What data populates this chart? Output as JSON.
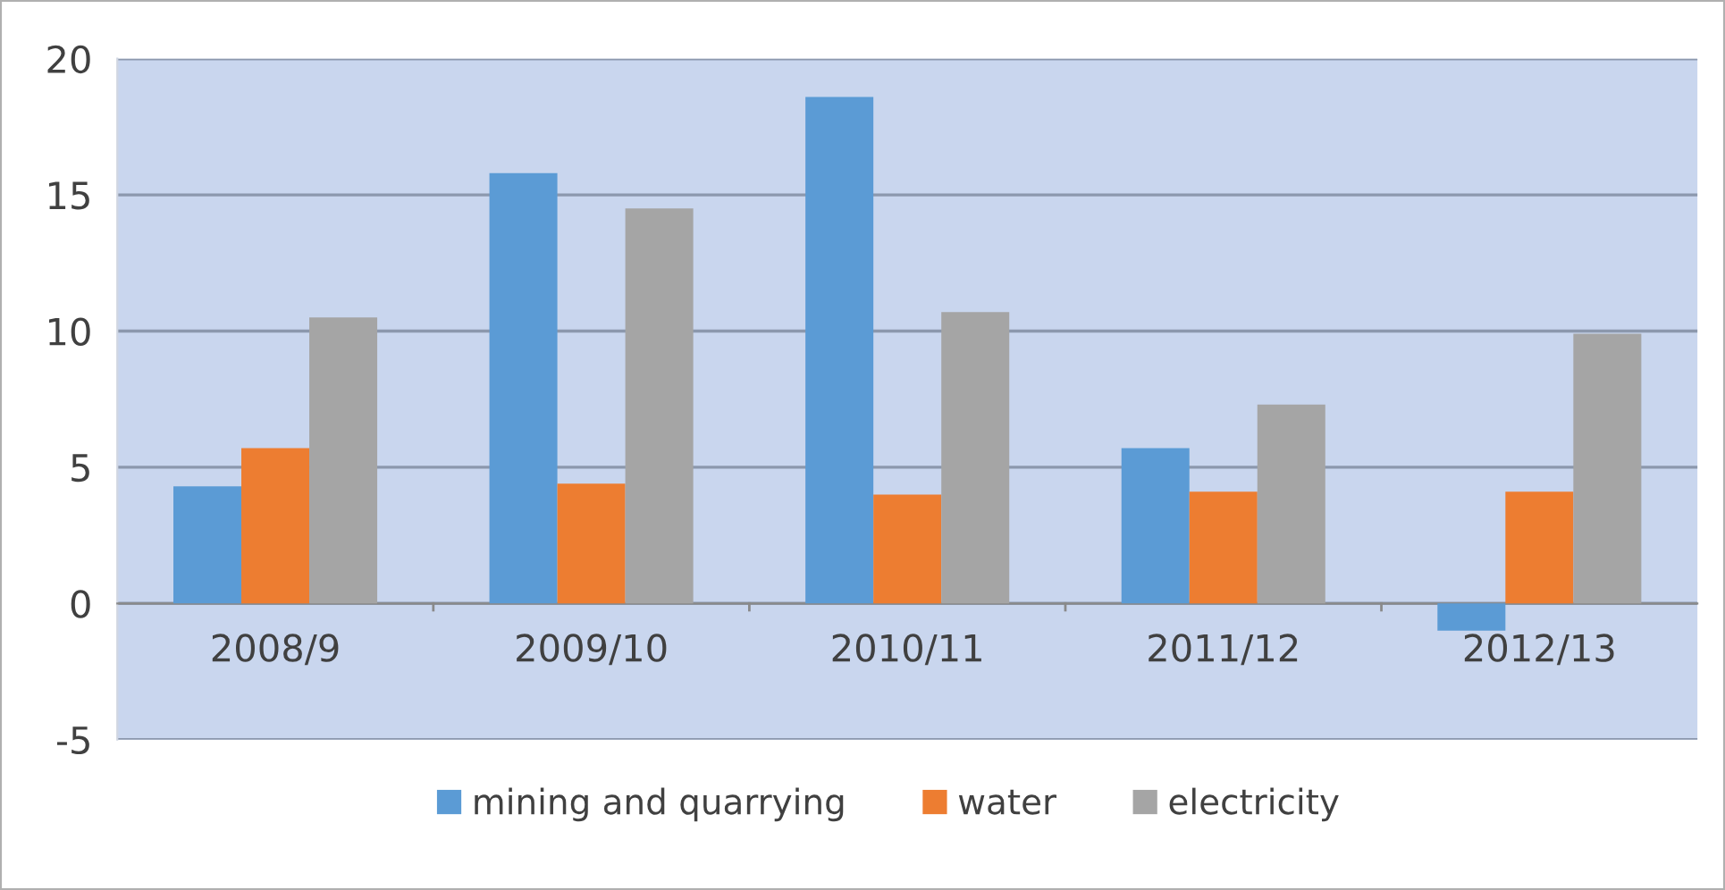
{
  "chart_data": {
    "type": "bar",
    "categories": [
      "2008/9",
      "2009/10",
      "2010/11",
      "2011/12",
      "2012/13"
    ],
    "series": [
      {
        "name": "mining and quarrying",
        "color": "#5b9bd5",
        "values": [
          4.3,
          15.8,
          18.6,
          5.7,
          -1.0
        ]
      },
      {
        "name": "water",
        "color": "#ed7d31",
        "values": [
          5.7,
          4.4,
          4.0,
          4.1,
          4.1
        ]
      },
      {
        "name": "electricity",
        "color": "#a5a5a5",
        "values": [
          10.5,
          14.5,
          10.7,
          7.3,
          9.9
        ]
      }
    ],
    "ylim": [
      -5,
      20
    ],
    "yticks": [
      -5,
      0,
      5,
      10,
      15,
      20
    ],
    "grid": "y",
    "legend": "bottom"
  }
}
